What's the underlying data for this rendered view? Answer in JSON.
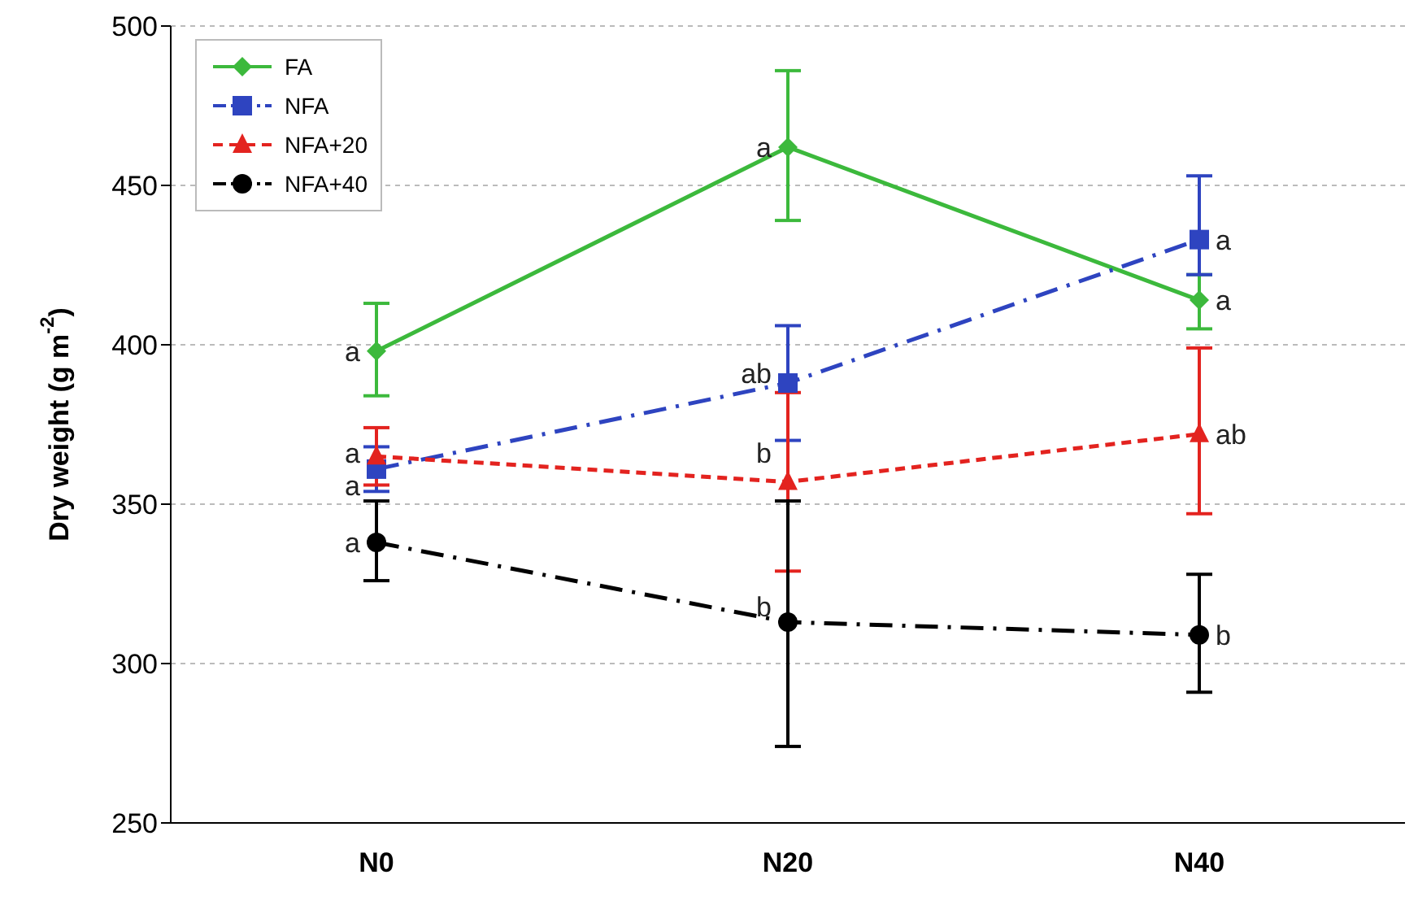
{
  "chart_data": {
    "type": "line",
    "ylabel": "Dry weight (g m$^{-2}$)",
    "categories": [
      "N0",
      "N20",
      "N40"
    ],
    "series": [
      {
        "name": "FA",
        "color": "#3cb93c",
        "marker": "diamond",
        "line_style": "solid",
        "values": [
          398,
          462,
          414
        ],
        "errors": [
          [
            384,
            413
          ],
          [
            439,
            486
          ],
          [
            405,
            422
          ]
        ]
      },
      {
        "name": "NFA",
        "color": "#2e44c0",
        "marker": "square",
        "line_style": "dashdot",
        "values": [
          361,
          388,
          433
        ],
        "errors": [
          [
            354,
            368
          ],
          [
            370,
            406
          ],
          [
            422,
            453
          ]
        ]
      },
      {
        "name": "NFA+20",
        "color": "#e3231f",
        "marker": "triangle",
        "line_style": "dashed",
        "values": [
          365,
          357,
          372
        ],
        "errors": [
          [
            356,
            374
          ],
          [
            329,
            385
          ],
          [
            347,
            399
          ]
        ]
      },
      {
        "name": "NFA+40",
        "color": "#000000",
        "marker": "circle",
        "line_style": "dashdot",
        "values": [
          338,
          313,
          309
        ],
        "errors": [
          [
            326,
            351
          ],
          [
            274,
            351
          ],
          [
            291,
            328
          ]
        ]
      }
    ],
    "ylim": [
      250,
      500
    ],
    "yticks": [
      250,
      300,
      350,
      400,
      450,
      500
    ],
    "grid": "y",
    "legend": "top left",
    "annotations": [
      {
        "text": "a",
        "x": "N0",
        "y": 398
      },
      {
        "text": "a",
        "x": "N0",
        "y": 356
      },
      {
        "text": "a",
        "x": "N0",
        "y": 366
      },
      {
        "text": "a",
        "x": "N0",
        "y": 338
      },
      {
        "text": "a",
        "x": "N20",
        "y": 462
      },
      {
        "text": "ab",
        "x": "N20",
        "y": 391
      },
      {
        "text": "b",
        "x": "N20",
        "y": 366
      },
      {
        "text": "b",
        "x": "N20",
        "y": 318
      },
      {
        "text": "a",
        "x": "N40",
        "y": 414
      },
      {
        "text": "a",
        "x": "N40",
        "y": 433
      },
      {
        "text": "ab",
        "x": "N40",
        "y": 372
      },
      {
        "text": "b",
        "x": "N40",
        "y": 309
      }
    ]
  }
}
